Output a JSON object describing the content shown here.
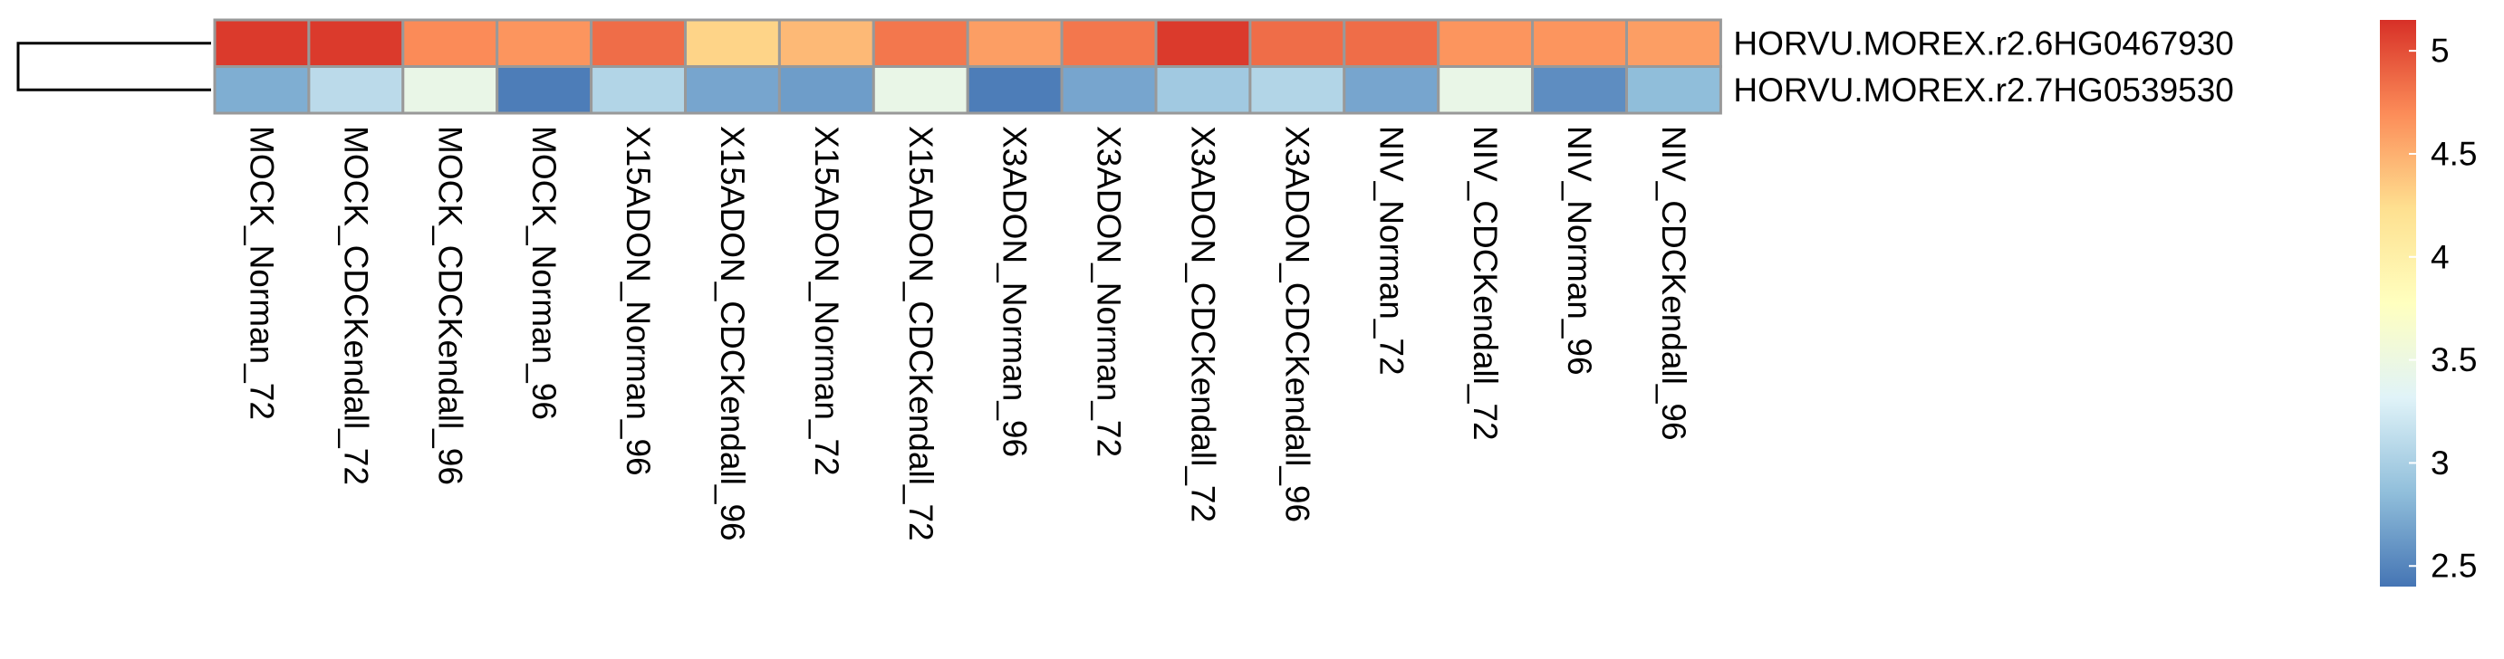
{
  "chart_data": {
    "type": "heatmap",
    "title": "",
    "xlabel": "",
    "ylabel": "",
    "rows": [
      "HORVU.MOREX.r2.6HG0467930",
      "HORVU.MOREX.r2.7HG0539530"
    ],
    "columns": [
      "MOCK_Norman_72",
      "MOCK_CDCKendall_72",
      "MOCK_CDCKendall_96",
      "MOCK_Norman_96",
      "X15ADON_Norman_96",
      "X15ADON_CDCKendall_96",
      "X15ADON_Norman_72",
      "X15ADON_CDCKendall_72",
      "X3ADON_Norman_96",
      "X3ADON_Norman_72",
      "X3ADON_CDCKendall_72",
      "X3ADON_CDCKendall_96",
      "NIV_Norman_72",
      "NIV_CDCKendall_72",
      "NIV_Norman_96",
      "NIV_CDCKendall_96"
    ],
    "values": [
      [
        5.1,
        5.1,
        4.7,
        4.65,
        4.85,
        4.3,
        4.45,
        4.8,
        4.6,
        4.8,
        5.1,
        4.85,
        4.85,
        4.65,
        4.65,
        4.6
      ],
      [
        2.75,
        3.1,
        3.45,
        2.45,
        3.05,
        2.7,
        2.65,
        3.45,
        2.45,
        2.7,
        2.95,
        3.05,
        2.7,
        3.45,
        2.55,
        2.85
      ]
    ],
    "color_scale": {
      "min": 2.4,
      "max": 5.15,
      "colors": [
        "#4575b4",
        "#91bfdb",
        "#e0f3f8",
        "#ffffbf",
        "#fee090",
        "#fc8d59",
        "#d73027"
      ]
    },
    "legend": {
      "ticks": [
        "2.5",
        "3",
        "3.5",
        "4",
        "4.5",
        "5"
      ],
      "tick_values": [
        2.5,
        3,
        3.5,
        4,
        4.5,
        5
      ],
      "placement": "right"
    },
    "row_dendrogram": true,
    "cell_border_color": "#999999"
  }
}
